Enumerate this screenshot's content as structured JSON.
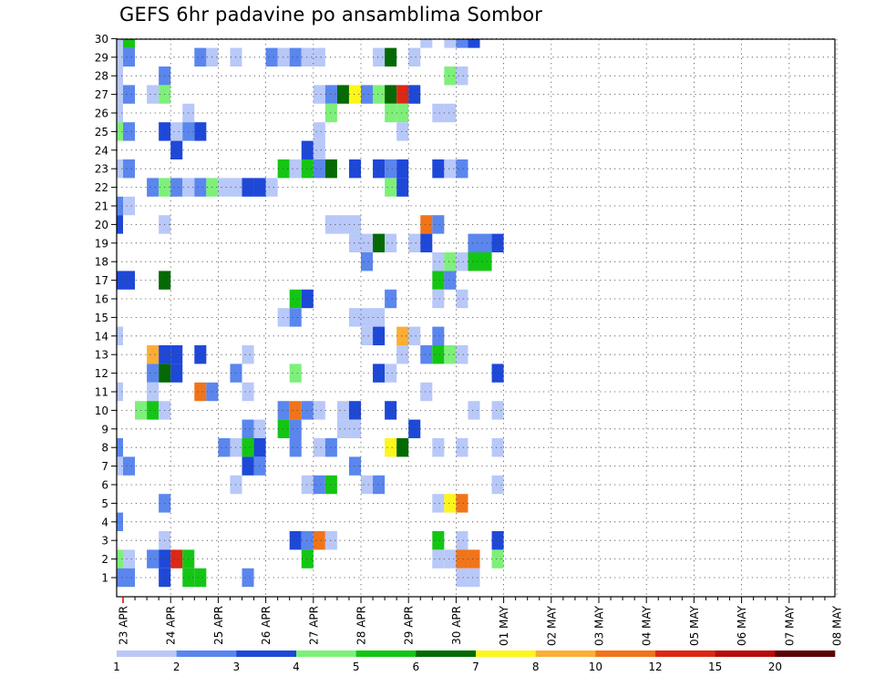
{
  "title": "GEFS 6hr padavine po ansamblima Sombor",
  "chart_data": {
    "type": "heatmap",
    "title": "GEFS 6hr padavine po ansamblima Sombor",
    "y_ticks": [
      "1",
      "2",
      "3",
      "4",
      "5",
      "6",
      "7",
      "8",
      "9",
      "10",
      "11",
      "12",
      "13",
      "14",
      "15",
      "16",
      "17",
      "18",
      "19",
      "20",
      "21",
      "22",
      "23",
      "24",
      "25",
      "26",
      "27",
      "28",
      "29",
      "30"
    ],
    "x_ticks": [
      "23 APR",
      "24 APR",
      "25 APR",
      "26 APR",
      "27 APR",
      "28 APR",
      "29 APR",
      "30 APR",
      "01 MAY",
      "02 MAY",
      "03 MAY",
      "04 MAY",
      "05 MAY",
      "06 MAY",
      "07 MAY",
      "08 MAY"
    ],
    "x_step_per_day": 4,
    "grid": true,
    "colorbar": {
      "boundaries": [
        "1",
        "2",
        "3",
        "4",
        "5",
        "6",
        "7",
        "8",
        "10",
        "12",
        "15",
        "20"
      ],
      "colors": [
        "#b8c8f8",
        "#5a86ee",
        "#1e48d8",
        "#7ef07a",
        "#14c614",
        "#046a04",
        "#fcf61c",
        "#fcae36",
        "#f0741a",
        "#dc2814",
        "#b80c0c",
        "#5c0404"
      ]
    },
    "color_classes": {
      "a": 0,
      "b": 1,
      "c": 2,
      "d": 3,
      "e": 4,
      "f": 5,
      "g": 6,
      "h": 7,
      "i": 8,
      "j": 9
    },
    "cells": [
      [
        30,
        -1,
        "a"
      ],
      [
        30,
        0,
        "e"
      ],
      [
        30,
        25,
        "a"
      ],
      [
        30,
        27,
        "a"
      ],
      [
        30,
        28,
        "b"
      ],
      [
        30,
        29,
        "c"
      ],
      [
        29,
        -4,
        "c"
      ],
      [
        29,
        -1,
        "a"
      ],
      [
        29,
        0,
        "b"
      ],
      [
        29,
        6,
        "b"
      ],
      [
        29,
        7,
        "a"
      ],
      [
        29,
        9,
        "a"
      ],
      [
        29,
        12,
        "b"
      ],
      [
        29,
        13,
        "a"
      ],
      [
        29,
        14,
        "b"
      ],
      [
        29,
        15,
        "a"
      ],
      [
        29,
        16,
        "a"
      ],
      [
        29,
        21,
        "a"
      ],
      [
        29,
        22,
        "f"
      ],
      [
        29,
        24,
        "a"
      ],
      [
        28,
        -1,
        "a"
      ],
      [
        28,
        3,
        "b"
      ],
      [
        28,
        27,
        "d"
      ],
      [
        28,
        28,
        "a"
      ],
      [
        27,
        -1,
        "a"
      ],
      [
        27,
        0,
        "b"
      ],
      [
        27,
        2,
        "a"
      ],
      [
        27,
        3,
        "d"
      ],
      [
        27,
        16,
        "a"
      ],
      [
        27,
        17,
        "b"
      ],
      [
        27,
        18,
        "f"
      ],
      [
        27,
        19,
        "g"
      ],
      [
        27,
        20,
        "b"
      ],
      [
        27,
        21,
        "d"
      ],
      [
        27,
        22,
        "f"
      ],
      [
        27,
        23,
        "j"
      ],
      [
        27,
        24,
        "c"
      ],
      [
        26,
        -1,
        "a"
      ],
      [
        26,
        5,
        "a"
      ],
      [
        26,
        17,
        "d"
      ],
      [
        26,
        22,
        "d"
      ],
      [
        26,
        23,
        "d"
      ],
      [
        26,
        26,
        "a"
      ],
      [
        26,
        27,
        "a"
      ],
      [
        25,
        -4,
        "c"
      ],
      [
        25,
        -1,
        "d"
      ],
      [
        25,
        0,
        "b"
      ],
      [
        25,
        3,
        "c"
      ],
      [
        25,
        4,
        "a"
      ],
      [
        25,
        5,
        "b"
      ],
      [
        25,
        6,
        "c"
      ],
      [
        25,
        16,
        "a"
      ],
      [
        25,
        23,
        "a"
      ],
      [
        24,
        -4,
        "b"
      ],
      [
        24,
        4,
        "c"
      ],
      [
        24,
        15,
        "c"
      ],
      [
        24,
        16,
        "a"
      ],
      [
        23,
        -4,
        "c"
      ],
      [
        23,
        -1,
        "a"
      ],
      [
        23,
        0,
        "b"
      ],
      [
        23,
        13,
        "e"
      ],
      [
        23,
        14,
        "a"
      ],
      [
        23,
        15,
        "e"
      ],
      [
        23,
        16,
        "b"
      ],
      [
        23,
        17,
        "f"
      ],
      [
        23,
        19,
        "c"
      ],
      [
        23,
        21,
        "c"
      ],
      [
        23,
        22,
        "b"
      ],
      [
        23,
        23,
        "c"
      ],
      [
        23,
        26,
        "c"
      ],
      [
        23,
        27,
        "a"
      ],
      [
        23,
        28,
        "b"
      ],
      [
        22,
        2,
        "b"
      ],
      [
        22,
        3,
        "d"
      ],
      [
        22,
        4,
        "b"
      ],
      [
        22,
        5,
        "a"
      ],
      [
        22,
        6,
        "b"
      ],
      [
        22,
        7,
        "d"
      ],
      [
        22,
        8,
        "a"
      ],
      [
        22,
        9,
        "a"
      ],
      [
        22,
        10,
        "c"
      ],
      [
        22,
        11,
        "c"
      ],
      [
        22,
        12,
        "a"
      ],
      [
        22,
        22,
        "d"
      ],
      [
        22,
        23,
        "c"
      ],
      [
        21,
        -4,
        "b"
      ],
      [
        21,
        -1,
        "b"
      ],
      [
        21,
        0,
        "a"
      ],
      [
        20,
        -1,
        "c"
      ],
      [
        20,
        3,
        "a"
      ],
      [
        20,
        17,
        "a"
      ],
      [
        20,
        18,
        "a"
      ],
      [
        20,
        19,
        "a"
      ],
      [
        20,
        25,
        "i"
      ],
      [
        20,
        26,
        "b"
      ],
      [
        19,
        -4,
        "b"
      ],
      [
        19,
        19,
        "a"
      ],
      [
        19,
        20,
        "a"
      ],
      [
        19,
        21,
        "f"
      ],
      [
        19,
        22,
        "a"
      ],
      [
        19,
        24,
        "a"
      ],
      [
        19,
        25,
        "c"
      ],
      [
        19,
        29,
        "b"
      ],
      [
        19,
        30,
        "b"
      ],
      [
        19,
        31,
        "c"
      ],
      [
        18,
        20,
        "b"
      ],
      [
        18,
        26,
        "a"
      ],
      [
        18,
        27,
        "d"
      ],
      [
        18,
        28,
        "a"
      ],
      [
        18,
        29,
        "e"
      ],
      [
        18,
        30,
        "e"
      ],
      [
        17,
        -4,
        "a"
      ],
      [
        17,
        -1,
        "c"
      ],
      [
        17,
        0,
        "c"
      ],
      [
        17,
        3,
        "f"
      ],
      [
        17,
        26,
        "e"
      ],
      [
        17,
        27,
        "b"
      ],
      [
        16,
        14,
        "e"
      ],
      [
        16,
        15,
        "c"
      ],
      [
        16,
        22,
        "b"
      ],
      [
        16,
        26,
        "a"
      ],
      [
        16,
        28,
        "a"
      ],
      [
        15,
        13,
        "a"
      ],
      [
        15,
        14,
        "b"
      ],
      [
        15,
        19,
        "a"
      ],
      [
        15,
        20,
        "a"
      ],
      [
        15,
        21,
        "a"
      ],
      [
        14,
        -1,
        "a"
      ],
      [
        14,
        20,
        "a"
      ],
      [
        14,
        21,
        "c"
      ],
      [
        14,
        23,
        "h"
      ],
      [
        14,
        24,
        "a"
      ],
      [
        14,
        26,
        "b"
      ],
      [
        13,
        -4,
        "b"
      ],
      [
        13,
        2,
        "h"
      ],
      [
        13,
        3,
        "c"
      ],
      [
        13,
        4,
        "c"
      ],
      [
        13,
        6,
        "c"
      ],
      [
        13,
        10,
        "a"
      ],
      [
        13,
        23,
        "a"
      ],
      [
        13,
        25,
        "b"
      ],
      [
        13,
        26,
        "e"
      ],
      [
        13,
        27,
        "d"
      ],
      [
        13,
        28,
        "a"
      ],
      [
        12,
        -4,
        "a"
      ],
      [
        12,
        2,
        "b"
      ],
      [
        12,
        3,
        "f"
      ],
      [
        12,
        4,
        "c"
      ],
      [
        12,
        9,
        "b"
      ],
      [
        12,
        14,
        "d"
      ],
      [
        12,
        21,
        "c"
      ],
      [
        12,
        22,
        "a"
      ],
      [
        12,
        31,
        "c"
      ],
      [
        11,
        -1,
        "a"
      ],
      [
        11,
        2,
        "a"
      ],
      [
        11,
        6,
        "i"
      ],
      [
        11,
        7,
        "b"
      ],
      [
        11,
        10,
        "a"
      ],
      [
        11,
        25,
        "a"
      ],
      [
        10,
        1,
        "d"
      ],
      [
        10,
        2,
        "e"
      ],
      [
        10,
        3,
        "a"
      ],
      [
        10,
        13,
        "b"
      ],
      [
        10,
        14,
        "i"
      ],
      [
        10,
        15,
        "b"
      ],
      [
        10,
        16,
        "a"
      ],
      [
        10,
        18,
        "a"
      ],
      [
        10,
        19,
        "c"
      ],
      [
        10,
        22,
        "c"
      ],
      [
        10,
        29,
        "a"
      ],
      [
        10,
        31,
        "a"
      ],
      [
        9,
        10,
        "b"
      ],
      [
        9,
        11,
        "a"
      ],
      [
        9,
        13,
        "e"
      ],
      [
        9,
        14,
        "b"
      ],
      [
        9,
        18,
        "a"
      ],
      [
        9,
        19,
        "a"
      ],
      [
        9,
        24,
        "c"
      ],
      [
        8,
        -4,
        "a"
      ],
      [
        8,
        -1,
        "b"
      ],
      [
        8,
        8,
        "b"
      ],
      [
        8,
        9,
        "a"
      ],
      [
        8,
        10,
        "e"
      ],
      [
        8,
        11,
        "c"
      ],
      [
        8,
        14,
        "b"
      ],
      [
        8,
        16,
        "a"
      ],
      [
        8,
        17,
        "b"
      ],
      [
        8,
        22,
        "g"
      ],
      [
        8,
        23,
        "f"
      ],
      [
        8,
        26,
        "a"
      ],
      [
        8,
        28,
        "a"
      ],
      [
        8,
        31,
        "a"
      ],
      [
        7,
        -7,
        "b"
      ],
      [
        7,
        -1,
        "a"
      ],
      [
        7,
        0,
        "b"
      ],
      [
        7,
        10,
        "c"
      ],
      [
        7,
        11,
        "b"
      ],
      [
        7,
        19,
        "b"
      ],
      [
        6,
        -3,
        "a"
      ],
      [
        6,
        9,
        "a"
      ],
      [
        6,
        15,
        "a"
      ],
      [
        6,
        16,
        "b"
      ],
      [
        6,
        17,
        "e"
      ],
      [
        6,
        20,
        "a"
      ],
      [
        6,
        21,
        "b"
      ],
      [
        6,
        31,
        "a"
      ],
      [
        5,
        3,
        "b"
      ],
      [
        5,
        26,
        "a"
      ],
      [
        5,
        27,
        "g"
      ],
      [
        5,
        28,
        "i"
      ],
      [
        4,
        -1,
        "b"
      ],
      [
        3,
        3,
        "a"
      ],
      [
        3,
        14,
        "c"
      ],
      [
        3,
        15,
        "b"
      ],
      [
        3,
        16,
        "i"
      ],
      [
        3,
        17,
        "a"
      ],
      [
        3,
        26,
        "e"
      ],
      [
        3,
        28,
        "a"
      ],
      [
        3,
        31,
        "c"
      ],
      [
        2,
        -1,
        "d"
      ],
      [
        2,
        0,
        "a"
      ],
      [
        2,
        2,
        "b"
      ],
      [
        2,
        3,
        "c"
      ],
      [
        2,
        4,
        "j"
      ],
      [
        2,
        5,
        "e"
      ],
      [
        2,
        15,
        "e"
      ],
      [
        2,
        26,
        "a"
      ],
      [
        2,
        27,
        "a"
      ],
      [
        2,
        28,
        "i"
      ],
      [
        2,
        29,
        "i"
      ],
      [
        2,
        31,
        "d"
      ],
      [
        1,
        -3,
        "d"
      ],
      [
        1,
        -1,
        "b"
      ],
      [
        1,
        0,
        "b"
      ],
      [
        1,
        3,
        "c"
      ],
      [
        1,
        5,
        "e"
      ],
      [
        1,
        6,
        "e"
      ],
      [
        1,
        10,
        "b"
      ],
      [
        1,
        28,
        "a"
      ],
      [
        1,
        29,
        "a"
      ]
    ]
  }
}
